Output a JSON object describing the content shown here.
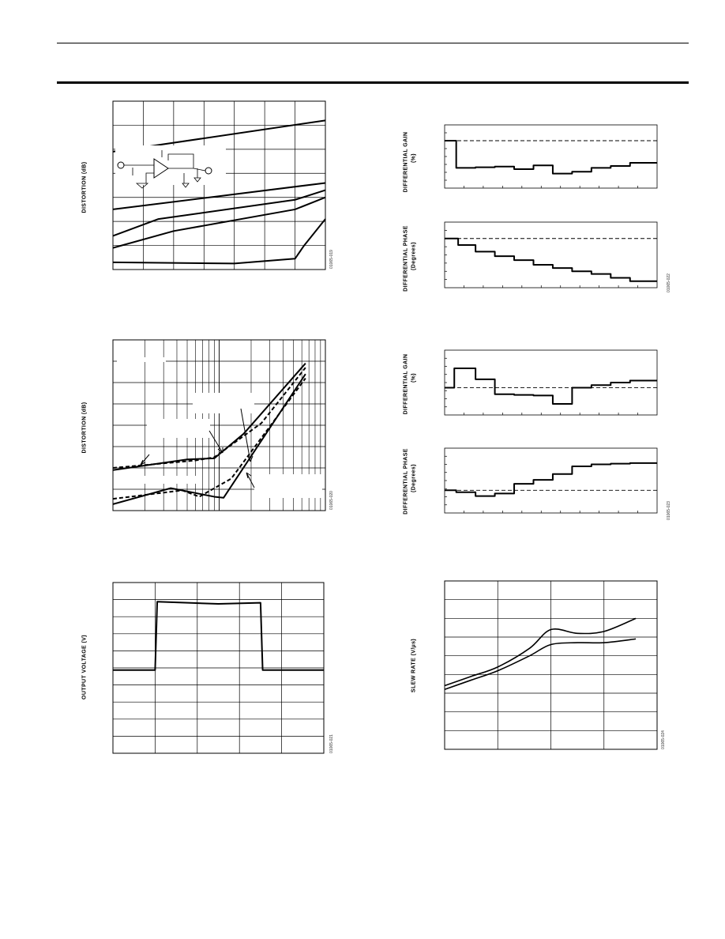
{
  "header": {
    "title": ""
  },
  "charts": {
    "c1": {
      "ylabel": "DISTORTION (dB)",
      "code": "01065-019",
      "schematic_icon": "op-amp-schematic"
    },
    "c2": {
      "ylabel": "DISTORTION (dB)",
      "code": "01065-020"
    },
    "c3": {
      "ylabel": "OUTPUT VOLTAGE (V)",
      "code": "01065-021"
    },
    "c4": {
      "ylabel_gain": "DIFFERENTIAL GAIN",
      "ylabel_gain_unit": "(%)",
      "ylabel_phase": "DIFFERENTIAL PHASE",
      "ylabel_phase_unit": "(Degrees)",
      "code": "01065-022"
    },
    "c5": {
      "ylabel_gain": "DIFFERENTIAL GAIN",
      "ylabel_gain_unit": "(%)",
      "ylabel_phase": "DIFFERENTIAL PHASE",
      "ylabel_phase_unit": "(Degrees)",
      "code": "01065-023"
    },
    "c6": {
      "ylabel": "SLEW RATE (V/µs)",
      "code": "01065-024"
    }
  },
  "chart_data": [
    {
      "id": "c1",
      "type": "line",
      "xlim": [
        0,
        7
      ],
      "ylim": [
        0,
        7
      ],
      "grid": true,
      "series": [
        {
          "x": [
            0,
            7
          ],
          "y": [
            4.9,
            6.2
          ]
        },
        {
          "x": [
            0,
            7
          ],
          "y": [
            2.5,
            3.6
          ]
        },
        {
          "x": [
            0,
            1.5,
            6,
            7
          ],
          "y": [
            1.4,
            2.1,
            2.9,
            3.3
          ]
        },
        {
          "x": [
            0,
            2,
            6,
            7
          ],
          "y": [
            0.9,
            1.6,
            2.5,
            3.0
          ]
        },
        {
          "x": [
            0,
            4,
            6,
            6.3,
            7
          ],
          "y": [
            0.3,
            0.25,
            0.45,
            1.0,
            2.1
          ]
        }
      ]
    },
    {
      "id": "c2",
      "type": "line",
      "xscale": "log",
      "xlim": [
        0.1,
        10
      ],
      "ylim": [
        0,
        8
      ],
      "grid": true,
      "series": [
        {
          "style": "solid",
          "x": [
            0.1,
            0.5,
            0.9,
            1.7,
            6.5
          ],
          "y": [
            1.9,
            2.4,
            2.45,
            3.6,
            6.9
          ]
        },
        {
          "style": "dashed",
          "x": [
            0.1,
            0.6,
            0.9,
            2.5,
            6.5
          ],
          "y": [
            2.0,
            2.35,
            2.5,
            4.1,
            6.7
          ]
        },
        {
          "style": "solid",
          "x": [
            0.1,
            0.35,
            0.9,
            1.1,
            6.5
          ],
          "y": [
            0.3,
            1.05,
            0.65,
            0.6,
            6.4
          ]
        },
        {
          "style": "dashed",
          "x": [
            0.1,
            0.45,
            0.65,
            1.3,
            6.5
          ],
          "y": [
            0.55,
            0.95,
            0.65,
            1.5,
            6.2
          ]
        }
      ]
    },
    {
      "id": "c3",
      "type": "line",
      "xlim": [
        0,
        5
      ],
      "ylim": [
        -4,
        4
      ],
      "grid": true,
      "series": [
        {
          "x": [
            0,
            1.0,
            1.05,
            2.5,
            3.5,
            3.55,
            5
          ],
          "y": [
            -0.1,
            -0.1,
            3.1,
            3.0,
            3.05,
            -0.1,
            -0.1
          ]
        }
      ]
    },
    {
      "id": "c4-gain",
      "type": "line",
      "xlim": [
        0,
        11
      ],
      "ylim": [
        0,
        1
      ],
      "grid": false,
      "reference_level": 0.75,
      "series": [
        {
          "step": true,
          "x": [
            0,
            0.6,
            1.6,
            2.6,
            3.6,
            4.6,
            5.6,
            6.6,
            7.6,
            8.6,
            9.6,
            11
          ],
          "y": [
            0.75,
            0.32,
            0.33,
            0.34,
            0.3,
            0.36,
            0.23,
            0.26,
            0.32,
            0.35,
            0.4,
            0.4
          ]
        }
      ]
    },
    {
      "id": "c4-phase",
      "type": "line",
      "xlim": [
        0,
        11
      ],
      "ylim": [
        0,
        1
      ],
      "grid": false,
      "reference_level": 0.75,
      "series": [
        {
          "step": true,
          "x": [
            0,
            0.7,
            1.6,
            2.6,
            3.6,
            4.6,
            5.6,
            6.6,
            7.6,
            8.6,
            9.6,
            11
          ],
          "y": [
            0.75,
            0.65,
            0.55,
            0.48,
            0.42,
            0.35,
            0.3,
            0.25,
            0.21,
            0.15,
            0.1,
            0.1
          ]
        }
      ]
    },
    {
      "id": "c5-gain",
      "type": "line",
      "xlim": [
        0,
        11
      ],
      "ylim": [
        0,
        1
      ],
      "grid": false,
      "reference_level": 0.42,
      "series": [
        {
          "step": true,
          "x": [
            0,
            0.5,
            1.6,
            2.6,
            3.6,
            4.6,
            5.6,
            6.6,
            7.6,
            8.6,
            9.6,
            11
          ],
          "y": [
            0.42,
            0.72,
            0.55,
            0.32,
            0.31,
            0.3,
            0.17,
            0.42,
            0.46,
            0.5,
            0.53,
            0.53
          ]
        }
      ]
    },
    {
      "id": "c5-phase",
      "type": "line",
      "xlim": [
        0,
        11
      ],
      "ylim": [
        0,
        1
      ],
      "grid": false,
      "reference_level": 0.35,
      "series": [
        {
          "step": true,
          "x": [
            0,
            0.6,
            1.6,
            2.6,
            3.6,
            4.6,
            5.6,
            6.6,
            7.6,
            8.6,
            9.6,
            11
          ],
          "y": [
            0.35,
            0.32,
            0.26,
            0.3,
            0.45,
            0.51,
            0.6,
            0.72,
            0.75,
            0.76,
            0.77,
            0.77
          ]
        }
      ]
    },
    {
      "id": "c6",
      "type": "line",
      "xlim": [
        0,
        4
      ],
      "ylim": [
        0,
        9
      ],
      "grid": true,
      "series": [
        {
          "x": [
            0,
            0.5,
            1,
            1.6,
            2,
            2.5,
            3,
            3.6
          ],
          "y": [
            3.4,
            3.9,
            4.4,
            5.4,
            6.4,
            6.2,
            6.3,
            7.0
          ]
        },
        {
          "x": [
            0,
            0.5,
            1,
            1.6,
            2,
            2.5,
            3,
            3.6
          ],
          "y": [
            3.2,
            3.7,
            4.2,
            5.0,
            5.6,
            5.7,
            5.7,
            5.9
          ]
        }
      ]
    }
  ]
}
